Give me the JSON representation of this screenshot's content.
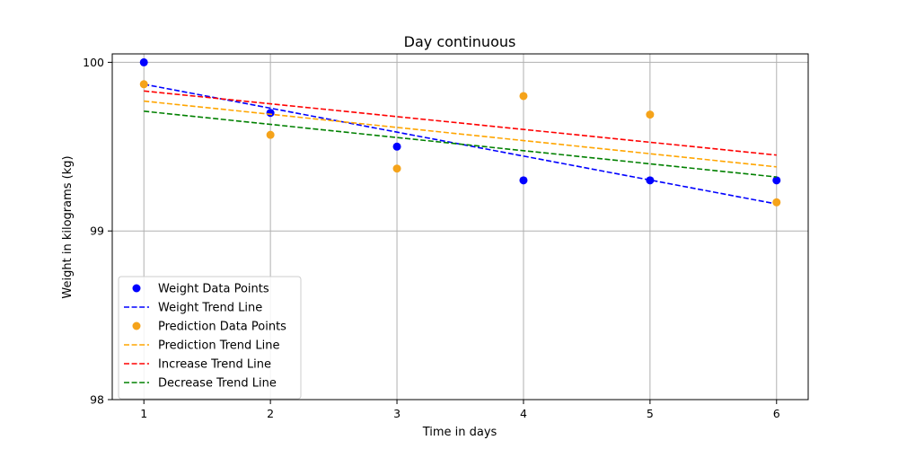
{
  "chart_data": {
    "type": "scatter",
    "title": "Day continuous",
    "xlabel": "Time in days",
    "ylabel": "Weight in kilograms (kg)",
    "xlim": [
      0.75,
      6.25
    ],
    "ylim": [
      98,
      100.05
    ],
    "xticks": [
      1,
      2,
      3,
      4,
      5,
      6
    ],
    "yticks": [
      98,
      99,
      100
    ],
    "grid": true,
    "legend_position": "lower-left",
    "series": [
      {
        "name": "Weight Data Points",
        "kind": "scatter",
        "color": "#0000ff",
        "x": [
          1,
          2,
          3,
          4,
          5,
          6
        ],
        "y": [
          100.0,
          99.7,
          99.5,
          99.3,
          99.3,
          99.3
        ]
      },
      {
        "name": "Weight Trend Line",
        "kind": "line",
        "color": "#0000ff",
        "dash": "dashed",
        "x": [
          1,
          6
        ],
        "y": [
          99.87,
          99.16
        ]
      },
      {
        "name": "Prediction Data Points",
        "kind": "scatter",
        "color": "#f5a31a",
        "x": [
          1,
          2,
          3,
          4,
          5,
          6
        ],
        "y": [
          99.87,
          99.57,
          99.37,
          99.8,
          99.69,
          99.17
        ]
      },
      {
        "name": "Prediction Trend Line",
        "kind": "line",
        "color": "#ffa500",
        "dash": "dashed",
        "x": [
          1,
          6
        ],
        "y": [
          99.77,
          99.38
        ]
      },
      {
        "name": "Increase Trend Line",
        "kind": "line",
        "color": "#ff0000",
        "dash": "dashed",
        "x": [
          1,
          6
        ],
        "y": [
          99.83,
          99.45
        ]
      },
      {
        "name": "Decrease Trend Line",
        "kind": "line",
        "color": "#008000",
        "dash": "dashed",
        "x": [
          1,
          6
        ],
        "y": [
          99.71,
          99.32
        ]
      }
    ]
  }
}
